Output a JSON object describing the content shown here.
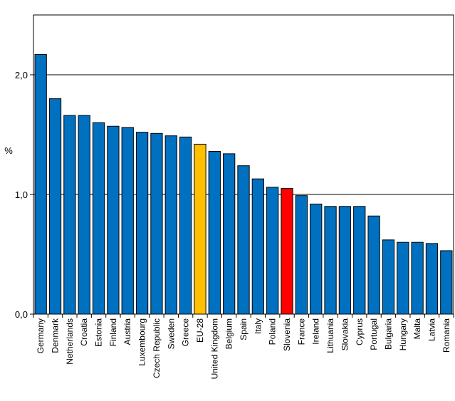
{
  "chart_data": {
    "type": "bar",
    "title": "",
    "xlabel": "",
    "ylabel": "%",
    "ylim": [
      0,
      2.5
    ],
    "yticks": [
      0,
      1,
      2
    ],
    "ytick_labels": [
      "0,0",
      "1,0",
      "2,0"
    ],
    "grid": true,
    "categories": [
      "Germany",
      "Denmark",
      "Netherlands",
      "Croatia",
      "Estonia",
      "Finland",
      "Austria",
      "Luxembourg",
      "Czech Republic",
      "Sweden",
      "Greece",
      "EU-28",
      "United Kingdom",
      "Belgium",
      "Spain",
      "Italy",
      "Poland",
      "Slovenia",
      "France",
      "Ireland",
      "Lithuania",
      "Slovakia",
      "Cyprus",
      "Portugal",
      "Bulgaria",
      "Hungary",
      "Malta",
      "Latvia",
      "Romania"
    ],
    "values": [
      2.17,
      1.8,
      1.66,
      1.66,
      1.6,
      1.57,
      1.56,
      1.52,
      1.51,
      1.49,
      1.48,
      1.42,
      1.36,
      1.34,
      1.24,
      1.13,
      1.06,
      1.05,
      0.99,
      0.92,
      0.9,
      0.9,
      0.9,
      0.82,
      0.62,
      0.6,
      0.6,
      0.59,
      0.53
    ],
    "colors": {
      "default": "#0070C0",
      "EU-28": "#FFC000",
      "Slovenia": "#FF0000"
    }
  }
}
